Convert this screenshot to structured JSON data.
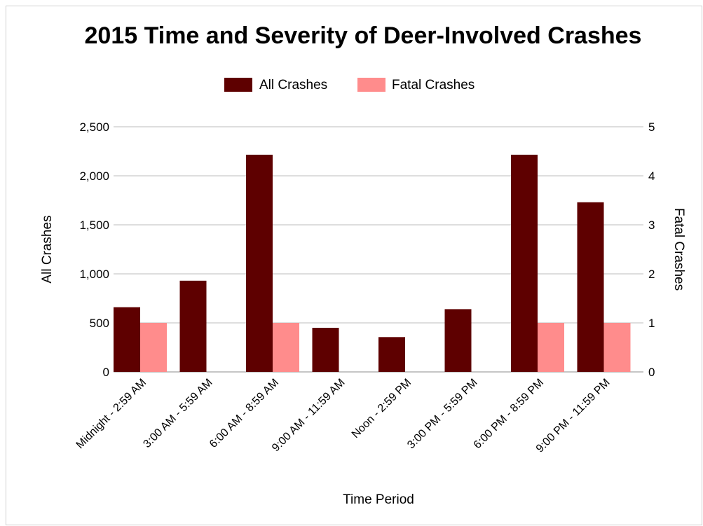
{
  "chart_data": {
    "type": "bar",
    "title": "2015 Time and Severity of Deer-Involved Crashes",
    "xlabel": "Time Period",
    "ylabel": "All Crashes",
    "y2label": "Fatal Crashes",
    "categories": [
      "Midnight - 2:59 AM",
      "3:00 AM - 5:59 AM",
      "6:00 AM - 8:59 AM",
      "9:00 AM - 11:59 AM",
      "Noon - 2:59 PM",
      "3:00 PM - 5:59 PM",
      "6:00 PM - 8:59 PM",
      "9:00 PM - 11:59 PM"
    ],
    "series": [
      {
        "name": "All Crashes",
        "axis": "left",
        "color": "#5e0000",
        "values": [
          660,
          930,
          2215,
          450,
          355,
          640,
          2215,
          1730
        ]
      },
      {
        "name": "Fatal Crashes",
        "axis": "right",
        "color": "#ff8c8c",
        "values": [
          1,
          0,
          1,
          0,
          0,
          0,
          1,
          1
        ]
      }
    ],
    "ylim": [
      0,
      2500
    ],
    "yticks": [
      "0",
      "500",
      "1,000",
      "1,500",
      "2,000",
      "2,500"
    ],
    "y2lim": [
      0,
      5
    ],
    "y2ticks": [
      "0",
      "1",
      "2",
      "3",
      "4",
      "5"
    ],
    "grid": true,
    "legend_position": "top"
  }
}
